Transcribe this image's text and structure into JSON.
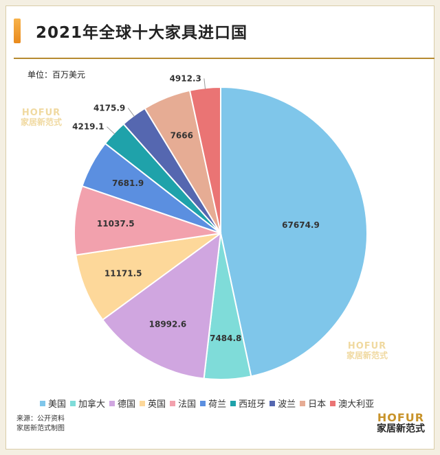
{
  "header": {
    "title": "2021年全球十大家具进口国"
  },
  "unit_label": "单位：百万美元",
  "watermark": {
    "en": "HOFUR",
    "cn": "家居新范式"
  },
  "source": {
    "line1": "来源：公开资料",
    "line2": "家居新范式制图"
  },
  "logo": {
    "en": "HOFUR",
    "cn": "家居新范式"
  },
  "chart_data": {
    "type": "pie",
    "title": "2021年全球十大家具进口国",
    "unit": "单位：百万美元",
    "legend_position": "bottom",
    "start": "12 o'clock, clockwise",
    "slices": [
      {
        "label": "美国",
        "value": 67674.9,
        "value_label": "67674.9",
        "color": "#7fc6ea"
      },
      {
        "label": "加拿大",
        "value": 7484.8,
        "value_label": "7484.8",
        "color": "#7fdcd9"
      },
      {
        "label": "德国",
        "value": 18992.6,
        "value_label": "18992.6",
        "color": "#d0a6e0"
      },
      {
        "label": "英国",
        "value": 11171.5,
        "value_label": "11171.5",
        "color": "#fdd89a"
      },
      {
        "label": "法国",
        "value": 11037.5,
        "value_label": "11037.5",
        "color": "#f2a1ad"
      },
      {
        "label": "荷兰",
        "value": 7681.9,
        "value_label": "7681.9",
        "color": "#5b8fe0"
      },
      {
        "label": "西班牙",
        "value": 4219.1,
        "value_label": "4219.1",
        "color": "#1fa2aa"
      },
      {
        "label": "波兰",
        "value": 4175.9,
        "value_label": "4175.9",
        "color": "#5567b0"
      },
      {
        "label": "日本",
        "value": 7666,
        "value_label": "7666",
        "color": "#e6ac94"
      },
      {
        "label": "澳大利亚",
        "value": 4912.3,
        "value_label": "4912.3",
        "color": "#ea7474"
      }
    ]
  }
}
